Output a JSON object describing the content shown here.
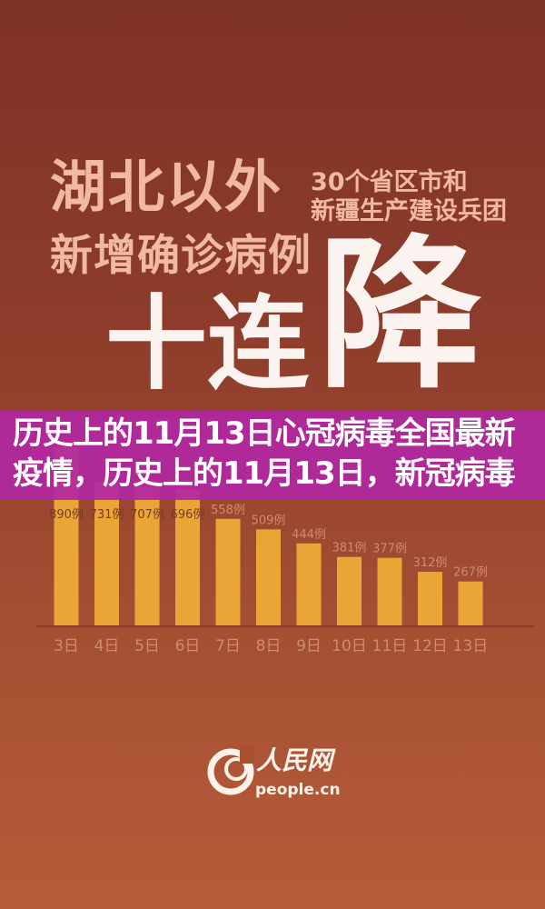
{
  "headline": {
    "line1": "湖北以外",
    "line2": "新增确诊病例",
    "sub1": "30个省区市和",
    "sub2": "新疆生产建设兵团",
    "big1": "十连",
    "big2": "降"
  },
  "overlay": {
    "line1": "历史上的11月13日心冠病毒全国最新",
    "line2": "疫情，历史上的11月13日，新冠病毒"
  },
  "logo": {
    "cn": "人民网",
    "en": "people.cn"
  },
  "colors": {
    "bar": "#e9a637",
    "overlay": "#b028a0",
    "label": "#d08b6c"
  },
  "chart_data": {
    "type": "bar",
    "categories": [
      "3日",
      "4日",
      "5日",
      "6日",
      "7日",
      "8日",
      "9日",
      "10日",
      "11日",
      "12日",
      "13日"
    ],
    "values": [
      890,
      731,
      707,
      696,
      558,
      509,
      444,
      381,
      377,
      312,
      267
    ],
    "data_labels": [
      "890例",
      "731例",
      "707例",
      "696例",
      "558例",
      "509例",
      "444例",
      "381例",
      "377例",
      "312例",
      "267例"
    ],
    "title": "",
    "xlabel": "",
    "ylabel": "",
    "grid": false
  }
}
